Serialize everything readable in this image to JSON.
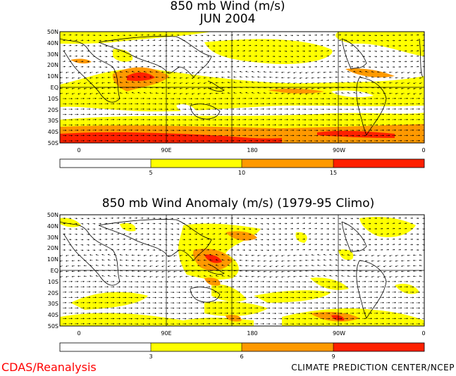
{
  "panels": [
    {
      "title_line1": "850 mb Wind (m/s)",
      "title_line2": "JUN 2004",
      "lat_labels": [
        "50N",
        "40N",
        "30N",
        "20N",
        "10N",
        "EQ",
        "10S",
        "20S",
        "30S",
        "40S",
        "50S"
      ],
      "lon_labels": [
        "0",
        "90E",
        "180",
        "90W",
        "0"
      ],
      "colorbar_ticks": [
        "5",
        "10",
        "15"
      ],
      "colorbar_colors": [
        "#ffffff",
        "#ffff00",
        "#ff9900",
        "#ff2000"
      ]
    },
    {
      "title_line1": "850 mb Wind Anomaly (m/s) (1979-95 Climo)",
      "lat_labels": [
        "50N",
        "40N",
        "30N",
        "20N",
        "10N",
        "EQ",
        "10S",
        "20S",
        "30S",
        "40S",
        "50S"
      ],
      "lon_labels": [
        "0",
        "90E",
        "180",
        "90W",
        "0"
      ],
      "colorbar_ticks": [
        "3",
        "6",
        "9"
      ],
      "colorbar_colors": [
        "#ffffff",
        "#ffff00",
        "#ff9900",
        "#ff2000"
      ]
    }
  ],
  "footer": {
    "left": "CDAS/Reanalysis",
    "right": "CLIMATE PREDICTION CENTER/NCEP"
  }
}
